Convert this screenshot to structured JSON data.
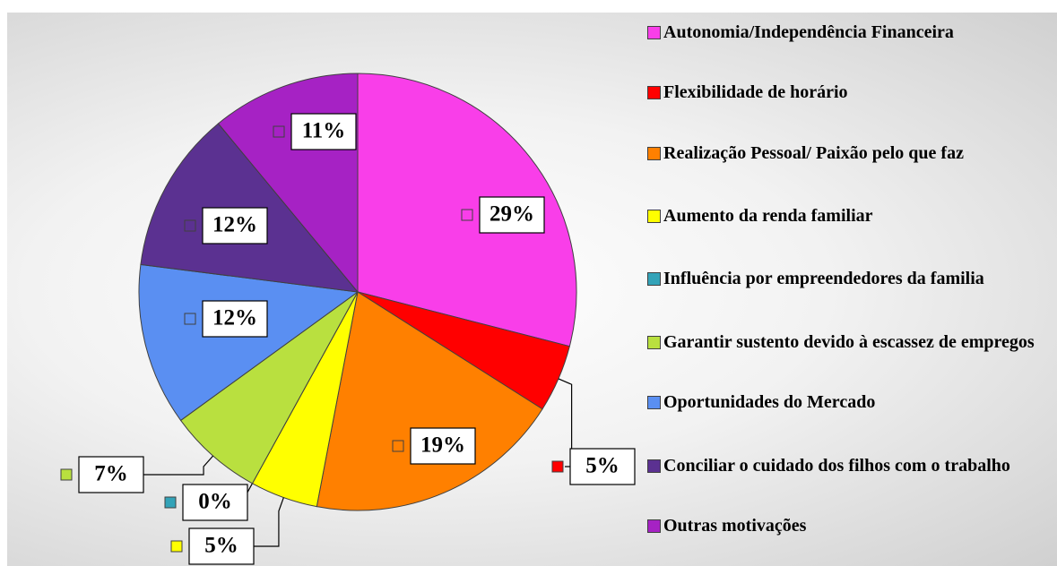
{
  "chart_data": {
    "type": "pie",
    "categories": [
      "Autonomia/Independência Financeira",
      "Flexibilidade de horário",
      "Realização Pessoal/ Paixão pelo que faz",
      "Aumento da renda familiar",
      "Influência por empreendedores da familia",
      "Garantir sustento devido à escassez de empregos",
      "Oportunidades do Mercado",
      "Conciliar o cuidado dos filhos com o trabalho",
      "Outras motivações"
    ],
    "values": [
      29,
      5,
      19,
      5,
      0,
      7,
      12,
      12,
      11
    ],
    "value_labels": [
      "29%",
      "5%",
      "19%",
      "5%",
      "0%",
      "7%",
      "12%",
      "12%",
      "11%"
    ],
    "colors": [
      "#f93ee9",
      "#ff0000",
      "#ff8000",
      "#ffff00",
      "#33a3b8",
      "#b9e03f",
      "#5a8ff2",
      "#5b3191",
      "#a622c4"
    ],
    "legend": "right"
  }
}
